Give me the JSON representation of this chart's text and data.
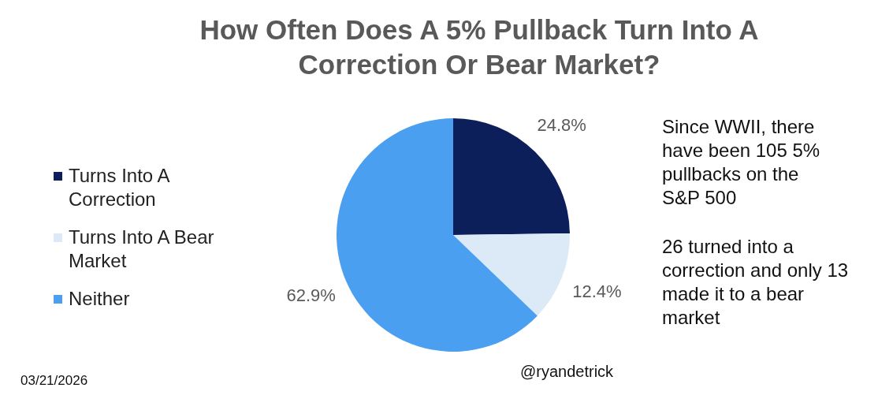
{
  "chart_data": {
    "type": "pie",
    "title": "How Often Does A 5% Pullback Turn Into A Correction Or Bear Market?",
    "categories": [
      "Turns Into A Correction",
      "Turns Into A Bear Market",
      "Neither"
    ],
    "values": [
      24.8,
      12.4,
      62.9
    ],
    "colors": [
      "#0c1f5b",
      "#dceaf8",
      "#4a9ff0"
    ],
    "value_labels": [
      "24.8%",
      "12.4%",
      "62.9%"
    ],
    "legend": "left",
    "annotations": [
      "Since WWII, there have been 105 5% pullbacks on the S&P 500",
      "26 turned into a correction and only 13 made it to a bear market",
      "@ryandetrick",
      "03/21/2026"
    ]
  }
}
